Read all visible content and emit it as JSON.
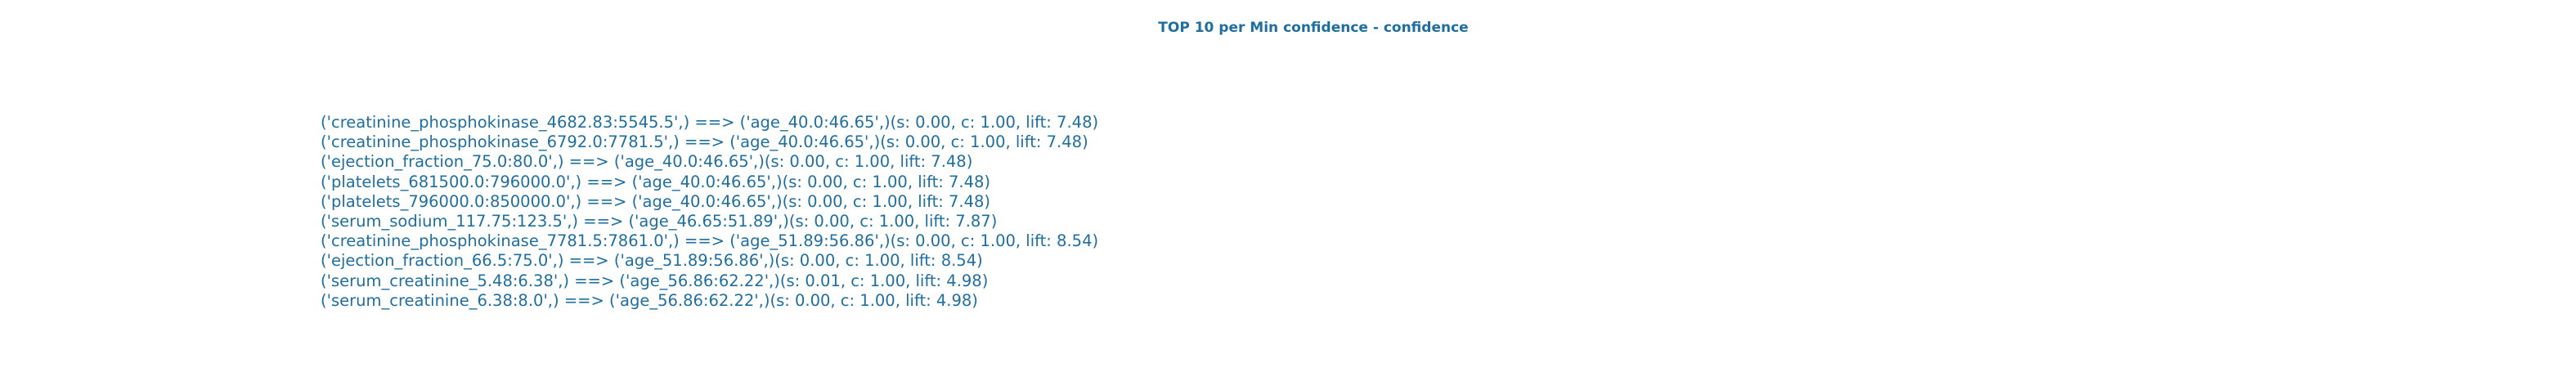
{
  "header": {
    "title": "TOP 10 per Min confidence - confidence"
  },
  "rules": [
    "('creatinine_phosphokinase_4682.83:5545.5',) ==> ('age_40.0:46.65',)(s: 0.00, c: 1.00, lift: 7.48)",
    "('creatinine_phosphokinase_6792.0:7781.5',) ==> ('age_40.0:46.65',)(s: 0.00, c: 1.00, lift: 7.48)",
    "('ejection_fraction_75.0:80.0',) ==> ('age_40.0:46.65',)(s: 0.00, c: 1.00, lift: 7.48)",
    "('platelets_681500.0:796000.0',) ==> ('age_40.0:46.65',)(s: 0.00, c: 1.00, lift: 7.48)",
    "('platelets_796000.0:850000.0',) ==> ('age_40.0:46.65',)(s: 0.00, c: 1.00, lift: 7.48)",
    "('serum_sodium_117.75:123.5',) ==> ('age_46.65:51.89',)(s: 0.00, c: 1.00, lift: 7.87)",
    "('creatinine_phosphokinase_7781.5:7861.0',) ==> ('age_51.89:56.86',)(s: 0.00, c: 1.00, lift: 8.54)",
    "('ejection_fraction_66.5:75.0',) ==> ('age_51.89:56.86',)(s: 0.00, c: 1.00, lift: 8.54)",
    "('serum_creatinine_5.48:6.38',) ==> ('age_56.86:62.22',)(s: 0.01, c: 1.00, lift: 4.98)",
    "('serum_creatinine_6.38:8.0',) ==> ('age_56.86:62.22',)(s: 0.00, c: 1.00, lift: 4.98)"
  ]
}
